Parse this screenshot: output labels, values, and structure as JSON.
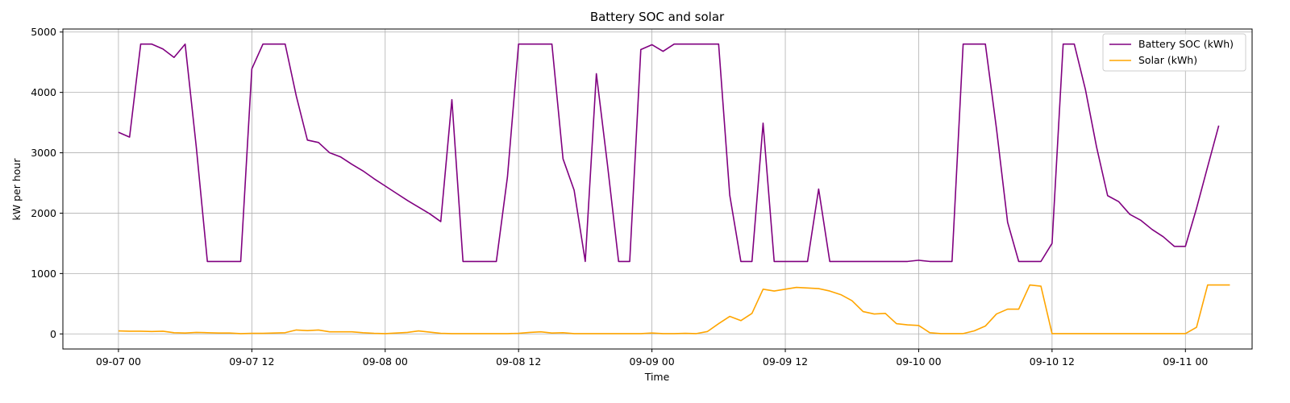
{
  "chart_data": {
    "type": "line",
    "title": "Battery SOC and solar",
    "xlabel": "Time",
    "ylabel": "kW per hour",
    "x_start": "2023-09-07T00:00",
    "x_step_hours": 1,
    "xlim_hours": [
      -5,
      102
    ],
    "ylim": [
      -250,
      5050
    ],
    "grid": true,
    "legend_position": "top-right",
    "x_ticks": [
      {
        "hour": 0,
        "label": "09-07 00"
      },
      {
        "hour": 12,
        "label": "09-07 12"
      },
      {
        "hour": 24,
        "label": "09-08 00"
      },
      {
        "hour": 36,
        "label": "09-08 12"
      },
      {
        "hour": 48,
        "label": "09-09 00"
      },
      {
        "hour": 60,
        "label": "09-09 12"
      },
      {
        "hour": 72,
        "label": "09-10 00"
      },
      {
        "hour": 84,
        "label": "09-10 12"
      },
      {
        "hour": 96,
        "label": "09-11 00"
      }
    ],
    "y_ticks": [
      0,
      1000,
      2000,
      3000,
      4000,
      5000
    ],
    "series": [
      {
        "name": "Battery SOC (kWh)",
        "color": "#800080",
        "values": [
          3340,
          3260,
          4800,
          4800,
          4720,
          4580,
          4800,
          3100,
          1200,
          1200,
          1200,
          1200,
          4390,
          4800,
          4800,
          4800,
          3940,
          3210,
          3170,
          3000,
          2930,
          2810,
          2700,
          2570,
          2450,
          2330,
          2210,
          2100,
          1990,
          1860,
          3880,
          1200,
          1200,
          1200,
          1200,
          2600,
          4800,
          4800,
          4800,
          4800,
          2900,
          2380,
          1200,
          4310,
          2800,
          1200,
          1200,
          4710,
          4790,
          4680,
          4800,
          4800,
          4800,
          4800,
          4800,
          2300,
          1200,
          1200,
          3490,
          1200,
          1200,
          1200,
          1200,
          2400,
          1200,
          1200,
          1200,
          1200,
          1200,
          1200,
          1200,
          1200,
          1220,
          1200,
          1200,
          1200,
          4800,
          4800,
          4800,
          3400,
          1850,
          1200,
          1200,
          1200,
          1500,
          4800,
          4800,
          4050,
          3100,
          2290,
          2190,
          1980,
          1880,
          1730,
          1610,
          1450,
          1450,
          2080,
          2770,
          3450
        ]
      },
      {
        "name": "Solar (kWh)",
        "color": "#ffa500",
        "values": [
          50,
          45,
          45,
          40,
          45,
          20,
          15,
          25,
          20,
          15,
          15,
          5,
          10,
          10,
          15,
          20,
          65,
          55,
          65,
          35,
          35,
          35,
          20,
          10,
          5,
          15,
          25,
          50,
          30,
          10,
          5,
          5,
          5,
          5,
          5,
          5,
          10,
          25,
          35,
          15,
          20,
          5,
          5,
          5,
          5,
          5,
          5,
          5,
          15,
          5,
          5,
          10,
          5,
          40,
          170,
          290,
          220,
          340,
          740,
          710,
          740,
          770,
          760,
          750,
          710,
          650,
          550,
          370,
          330,
          340,
          170,
          150,
          140,
          20,
          5,
          5,
          5,
          50,
          130,
          330,
          410,
          410,
          810,
          790,
          5,
          5,
          5,
          5,
          5,
          5,
          5,
          5,
          5,
          5,
          5,
          5,
          5,
          110,
          810,
          810,
          810
        ]
      }
    ]
  }
}
